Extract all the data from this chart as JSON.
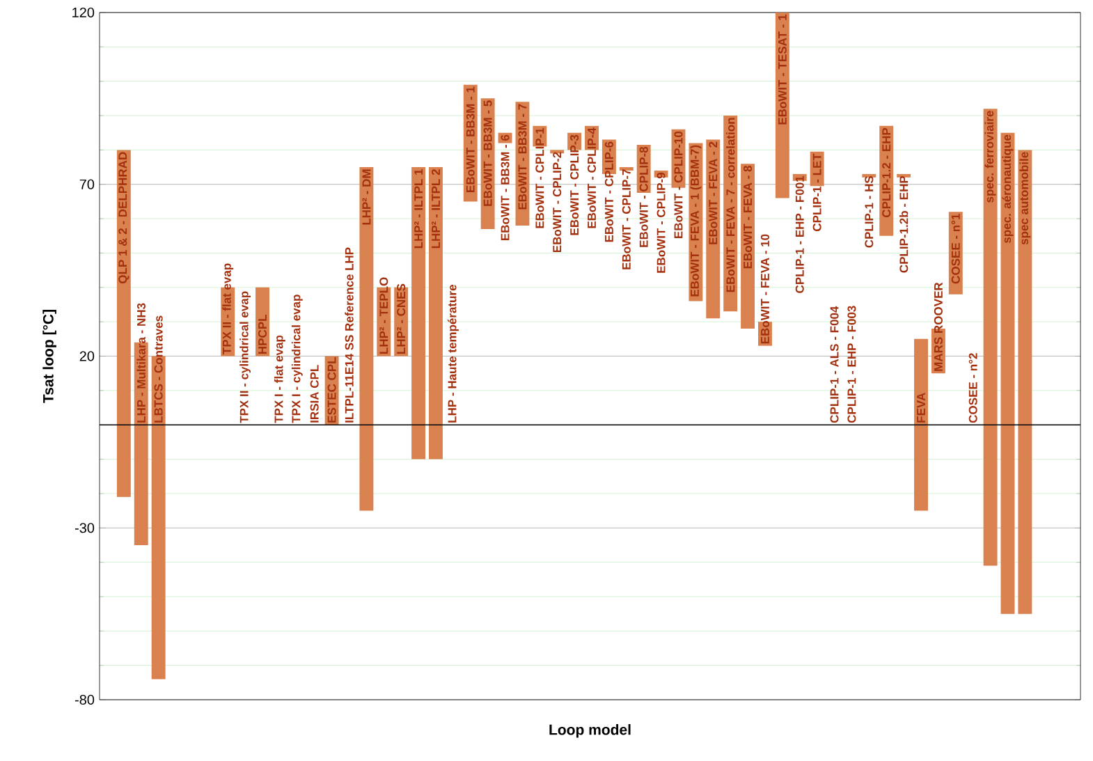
{
  "chart_data": {
    "type": "bar",
    "xlabel": "Loop model",
    "ylabel": "Tsat  loop [°C]",
    "color": "#d9824f",
    "categories": [
      "QLP 1 & 2 - DELPHRAD",
      "LHP - Multikara - NH3",
      "LBTCS - Contraves",
      null,
      null,
      null,
      "TPX II - flat evap",
      "TPX II - cylindrical evap",
      "HPCPL",
      "TPX I - flat evap",
      "TPX I - cylindrical evap",
      "IRSIA CPL",
      "ESTEC CPL",
      "ILTPL-11E14 SS Reference LHP",
      "LHP² - DM",
      "LHP² - TEPLO",
      "LHP² - CNES",
      "LHP² - ILTPL 1",
      "LHP² - ILTPL 2",
      "LHP - Haute température",
      "EBoWIT - BB3M - 1",
      "EBoWIT - BB3M - 5",
      "EBoWIT - BB3M - 6",
      "EBoWIT - BB3M - 7",
      "EBoWIT - CPLIP-1",
      "EBoWIT - CPLIP-2",
      "EBoWIT - CPLIP-3",
      "EBoWIT - CPLIP-4",
      "EBoWIT - CPLIP-6",
      "EBoWIT - CPLIP-7",
      "EBoWIT - CPLIP-8",
      "EBoWIT - CPLIP-9",
      "EBoWIT - CPLIP-10",
      "EBoWIT - FEVA - 1 (BBM-7)",
      "EBoWIT - FEVA - 2",
      "EBoWIT - FEVA - 7 - correlation",
      "EBoWIT - FEVA - 8",
      "EBoWIT - FEVA - 10",
      "EBoWIT - TESAT - 1",
      "CPLIP-1 - EHP - F001",
      "CPLIP-1 - LET",
      "CPLIP-1 - ALS - F004",
      "CPLIP-1 - EHP - F003",
      "CPLIP-1 - HS",
      "CPLIP-1.2 - EHP",
      "CPLIP-1.2b - EHP",
      "FEVA",
      "MARS ROOVER",
      "COSEE - n°1",
      "COSEE - n°2",
      "spec. ferroviaire",
      "spec. aéronautique",
      "spec automobile"
    ],
    "base": [
      -21,
      -35,
      -74,
      null,
      null,
      null,
      20,
      null,
      20,
      null,
      null,
      null,
      0,
      null,
      -25,
      20,
      20,
      -10,
      -10,
      null,
      65,
      57,
      82,
      58,
      81,
      79,
      80,
      80,
      73,
      74,
      67.5,
      72,
      69,
      36,
      31,
      33,
      28,
      23,
      66,
      71,
      69.5,
      null,
      null,
      72,
      55,
      72,
      -25,
      15,
      38,
      null,
      -41,
      -55,
      -55
    ],
    "values": [
      101,
      59,
      94,
      null,
      null,
      null,
      20,
      null,
      20,
      null,
      null,
      null,
      20,
      null,
      100,
      20,
      20,
      85,
      85,
      null,
      34,
      38,
      3,
      36,
      6,
      1,
      5,
      7,
      10,
      1,
      14,
      2,
      17,
      46,
      52,
      57,
      48,
      7,
      54,
      2,
      10,
      null,
      null,
      1,
      32,
      1,
      50,
      13,
      24,
      null,
      133,
      140,
      135
    ],
    "ylim": [
      -80,
      120
    ],
    "yticks": [
      -80,
      -30,
      20,
      70,
      120
    ],
    "grid": "y"
  }
}
